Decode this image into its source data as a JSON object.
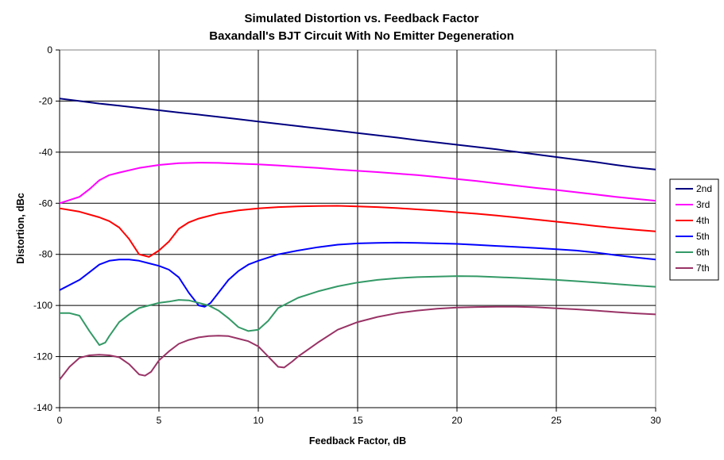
{
  "chart_data": {
    "type": "line",
    "title": "Simulated Distortion vs. Feedback Factor",
    "subtitle": "Baxandall's BJT Circuit With No Emitter Degeneration",
    "xlabel": "Feedback Factor, dB",
    "ylabel": "Distortion, dBc",
    "xlim": [
      0,
      30
    ],
    "ylim": [
      -140,
      0
    ],
    "xticks": [
      0,
      5,
      10,
      15,
      20,
      25,
      30
    ],
    "yticks": [
      0,
      -20,
      -40,
      -60,
      -80,
      -100,
      -120,
      -140
    ],
    "grid": true,
    "legend_position": "right",
    "series": [
      {
        "name": "2nd",
        "color": "#000080",
        "points": [
          [
            0,
            -19
          ],
          [
            1,
            -20
          ],
          [
            2,
            -21
          ],
          [
            3,
            -21.8
          ],
          [
            4,
            -22.7
          ],
          [
            5,
            -23.6
          ],
          [
            6,
            -24.5
          ],
          [
            7,
            -25.3
          ],
          [
            8,
            -26.2
          ],
          [
            9,
            -27.1
          ],
          [
            10,
            -28
          ],
          [
            11,
            -28.9
          ],
          [
            12,
            -29.8
          ],
          [
            13,
            -30.7
          ],
          [
            14,
            -31.6
          ],
          [
            15,
            -32.5
          ],
          [
            16,
            -33.4
          ],
          [
            17,
            -34.3
          ],
          [
            18,
            -35.3
          ],
          [
            19,
            -36.2
          ],
          [
            20,
            -37.1
          ],
          [
            21,
            -38
          ],
          [
            22,
            -38.9
          ],
          [
            23,
            -39.9
          ],
          [
            24,
            -40.9
          ],
          [
            25,
            -41.9
          ],
          [
            26,
            -42.9
          ],
          [
            27,
            -43.9
          ],
          [
            28,
            -45
          ],
          [
            29,
            -46
          ],
          [
            30,
            -46.8
          ]
        ]
      },
      {
        "name": "3rd",
        "color": "#FF00FF",
        "points": [
          [
            0,
            -60
          ],
          [
            1,
            -57.5
          ],
          [
            1.5,
            -54.5
          ],
          [
            2,
            -51
          ],
          [
            2.5,
            -49
          ],
          [
            3,
            -48
          ],
          [
            4,
            -46.2
          ],
          [
            5,
            -45
          ],
          [
            6,
            -44.3
          ],
          [
            7,
            -44.1
          ],
          [
            8,
            -44.2
          ],
          [
            9,
            -44.5
          ],
          [
            10,
            -44.8
          ],
          [
            11,
            -45.2
          ],
          [
            12,
            -45.7
          ],
          [
            13,
            -46.2
          ],
          [
            14,
            -46.8
          ],
          [
            15,
            -47.3
          ],
          [
            16,
            -47.8
          ],
          [
            17,
            -48.4
          ],
          [
            18,
            -49
          ],
          [
            19,
            -49.7
          ],
          [
            20,
            -50.5
          ],
          [
            21,
            -51.3
          ],
          [
            22,
            -52.2
          ],
          [
            23,
            -53.1
          ],
          [
            24,
            -54
          ],
          [
            25,
            -54.8
          ],
          [
            26,
            -55.7
          ],
          [
            27,
            -56.6
          ],
          [
            28,
            -57.5
          ],
          [
            29,
            -58.3
          ],
          [
            30,
            -59
          ]
        ]
      },
      {
        "name": "4th",
        "color": "#FF0000",
        "points": [
          [
            0,
            -62
          ],
          [
            1,
            -63.3
          ],
          [
            2,
            -65.5
          ],
          [
            2.5,
            -67
          ],
          [
            3,
            -69.5
          ],
          [
            3.5,
            -74
          ],
          [
            4,
            -80
          ],
          [
            4.5,
            -81
          ],
          [
            5,
            -78.5
          ],
          [
            5.5,
            -75
          ],
          [
            6,
            -70
          ],
          [
            6.5,
            -67.5
          ],
          [
            7,
            -66
          ],
          [
            8,
            -64
          ],
          [
            9,
            -62.8
          ],
          [
            10,
            -62
          ],
          [
            11,
            -61.5
          ],
          [
            12,
            -61.2
          ],
          [
            13,
            -61.1
          ],
          [
            14,
            -61
          ],
          [
            15,
            -61.2
          ],
          [
            16,
            -61.5
          ],
          [
            17,
            -61.9
          ],
          [
            18,
            -62.4
          ],
          [
            19,
            -62.9
          ],
          [
            20,
            -63.5
          ],
          [
            21,
            -64.1
          ],
          [
            22,
            -64.8
          ],
          [
            23,
            -65.6
          ],
          [
            24,
            -66.4
          ],
          [
            25,
            -67.2
          ],
          [
            26,
            -68
          ],
          [
            27,
            -68.9
          ],
          [
            28,
            -69.7
          ],
          [
            29,
            -70.4
          ],
          [
            30,
            -71
          ]
        ]
      },
      {
        "name": "5th",
        "color": "#0000FF",
        "points": [
          [
            0,
            -94
          ],
          [
            1,
            -90
          ],
          [
            1.5,
            -87
          ],
          [
            2,
            -84
          ],
          [
            2.5,
            -82.5
          ],
          [
            3,
            -82
          ],
          [
            3.5,
            -82
          ],
          [
            4,
            -82.5
          ],
          [
            4.5,
            -83.5
          ],
          [
            5,
            -84.5
          ],
          [
            5.5,
            -86
          ],
          [
            6,
            -89
          ],
          [
            6.5,
            -95
          ],
          [
            7,
            -100
          ],
          [
            7.3,
            -100.5
          ],
          [
            7.6,
            -99
          ],
          [
            8,
            -95
          ],
          [
            8.5,
            -90
          ],
          [
            9,
            -86.5
          ],
          [
            9.5,
            -84
          ],
          [
            10,
            -82.5
          ],
          [
            11,
            -80
          ],
          [
            12,
            -78.5
          ],
          [
            13,
            -77.2
          ],
          [
            14,
            -76.2
          ],
          [
            15,
            -75.7
          ],
          [
            16,
            -75.5
          ],
          [
            17,
            -75.4
          ],
          [
            18,
            -75.5
          ],
          [
            19,
            -75.7
          ],
          [
            20,
            -75.9
          ],
          [
            21,
            -76.3
          ],
          [
            22,
            -76.7
          ],
          [
            23,
            -77.1
          ],
          [
            24,
            -77.5
          ],
          [
            25,
            -78
          ],
          [
            26,
            -78.5
          ],
          [
            27,
            -79.3
          ],
          [
            28,
            -80.3
          ],
          [
            29,
            -81.2
          ],
          [
            30,
            -82
          ]
        ]
      },
      {
        "name": "6th",
        "color": "#339966",
        "points": [
          [
            0,
            -103
          ],
          [
            0.5,
            -103
          ],
          [
            1,
            -104
          ],
          [
            1.5,
            -110
          ],
          [
            2,
            -115.5
          ],
          [
            2.3,
            -114.5
          ],
          [
            2.5,
            -112
          ],
          [
            3,
            -106.5
          ],
          [
            3.5,
            -103.5
          ],
          [
            4,
            -101
          ],
          [
            4.5,
            -100
          ],
          [
            5,
            -99
          ],
          [
            5.5,
            -98.5
          ],
          [
            6,
            -97.8
          ],
          [
            6.5,
            -98
          ],
          [
            7,
            -99
          ],
          [
            7.5,
            -100
          ],
          [
            8,
            -102
          ],
          [
            8.5,
            -105
          ],
          [
            9,
            -108.5
          ],
          [
            9.5,
            -110
          ],
          [
            10,
            -109.5
          ],
          [
            10.5,
            -106
          ],
          [
            11,
            -101
          ],
          [
            12,
            -97
          ],
          [
            13,
            -94.5
          ],
          [
            14,
            -92.5
          ],
          [
            15,
            -91
          ],
          [
            16,
            -90
          ],
          [
            17,
            -89.3
          ],
          [
            18,
            -88.9
          ],
          [
            19,
            -88.7
          ],
          [
            20,
            -88.5
          ],
          [
            21,
            -88.6
          ],
          [
            22,
            -88.9
          ],
          [
            23,
            -89.2
          ],
          [
            24,
            -89.6
          ],
          [
            25,
            -90
          ],
          [
            26,
            -90.5
          ],
          [
            27,
            -91
          ],
          [
            28,
            -91.6
          ],
          [
            29,
            -92.2
          ],
          [
            30,
            -92.7
          ]
        ]
      },
      {
        "name": "7th",
        "color": "#993366",
        "points": [
          [
            0,
            -129
          ],
          [
            0.5,
            -124
          ],
          [
            1,
            -120.5
          ],
          [
            1.5,
            -119.5
          ],
          [
            2,
            -119.3
          ],
          [
            2.5,
            -119.5
          ],
          [
            3,
            -120.3
          ],
          [
            3.5,
            -123
          ],
          [
            4,
            -127
          ],
          [
            4.3,
            -127.5
          ],
          [
            4.6,
            -126
          ],
          [
            5,
            -121.5
          ],
          [
            5.5,
            -118
          ],
          [
            6,
            -115
          ],
          [
            6.5,
            -113.5
          ],
          [
            7,
            -112.5
          ],
          [
            7.5,
            -112
          ],
          [
            8,
            -111.8
          ],
          [
            8.5,
            -112
          ],
          [
            9,
            -113
          ],
          [
            9.5,
            -114
          ],
          [
            10,
            -116
          ],
          [
            10.5,
            -120
          ],
          [
            11,
            -124
          ],
          [
            11.3,
            -124.3
          ],
          [
            11.7,
            -122
          ],
          [
            12,
            -120
          ],
          [
            13,
            -114.5
          ],
          [
            14,
            -109.5
          ],
          [
            15,
            -106.5
          ],
          [
            16,
            -104.5
          ],
          [
            17,
            -103
          ],
          [
            18,
            -102
          ],
          [
            19,
            -101.3
          ],
          [
            20,
            -100.8
          ],
          [
            21,
            -100.6
          ],
          [
            22,
            -100.5
          ],
          [
            23,
            -100.5
          ],
          [
            24,
            -100.7
          ],
          [
            25,
            -101.1
          ],
          [
            26,
            -101.5
          ],
          [
            27,
            -102
          ],
          [
            28,
            -102.6
          ],
          [
            29,
            -103.1
          ],
          [
            30,
            -103.5
          ]
        ]
      }
    ]
  }
}
